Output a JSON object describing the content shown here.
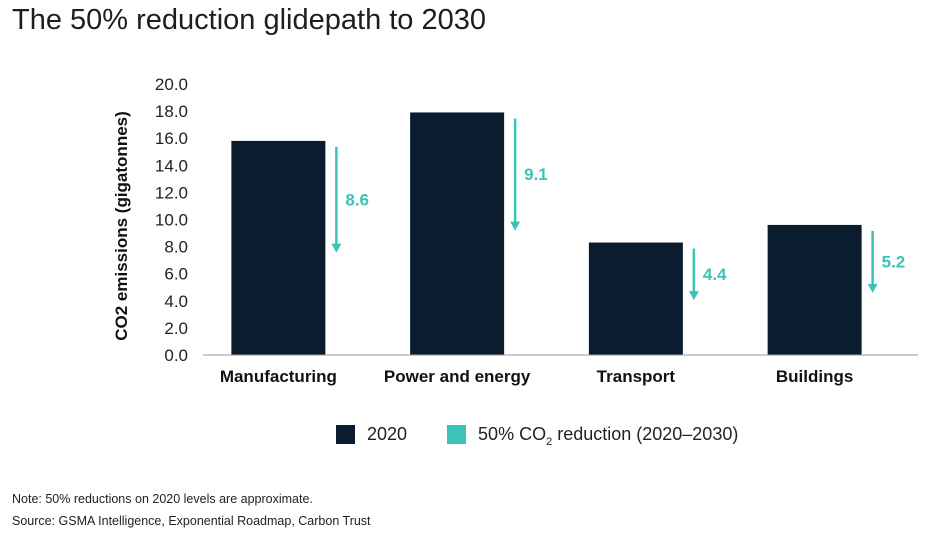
{
  "title": "The 50% reduction glidepath to 2030",
  "colors": {
    "bar": "#0b1c2e",
    "arrow": "#3cc2b8",
    "axis": "#999999"
  },
  "legend": {
    "items": [
      {
        "label": "2020",
        "color": "#0b1c2e"
      },
      {
        "label_prefix": "50% CO",
        "label_sub": "2",
        "label_suffix": " reduction (2020–2030)",
        "color": "#3cc2b8"
      }
    ]
  },
  "notes": {
    "note": "Note: 50% reductions on 2020 levels are approximate.",
    "source": "Source: GSMA Intelligence, Exponential Roadmap, Carbon Trust"
  },
  "chart_data": {
    "type": "bar",
    "categories": [
      "Manufacturing",
      "Power and energy",
      "Transport",
      "Buildings"
    ],
    "series": [
      {
        "name": "2020",
        "values": [
          15.8,
          17.9,
          8.3,
          9.6
        ]
      },
      {
        "name": "50% CO2 reduction (2020–2030)",
        "values": [
          8.6,
          9.1,
          4.4,
          5.2
        ],
        "type": "arrow"
      }
    ],
    "ylabel": "CO2 emissions (gigatonnes)",
    "ylim": [
      0,
      20
    ],
    "yticks": [
      "0.0",
      "2.0",
      "4.0",
      "6.0",
      "8.0",
      "10.0",
      "12.0",
      "14.0",
      "16.0",
      "18.0",
      "20.0"
    ],
    "data_labels": [
      "8.6",
      "9.1",
      "4.4",
      "5.2"
    ],
    "grid": false,
    "legend_position": "bottom"
  }
}
